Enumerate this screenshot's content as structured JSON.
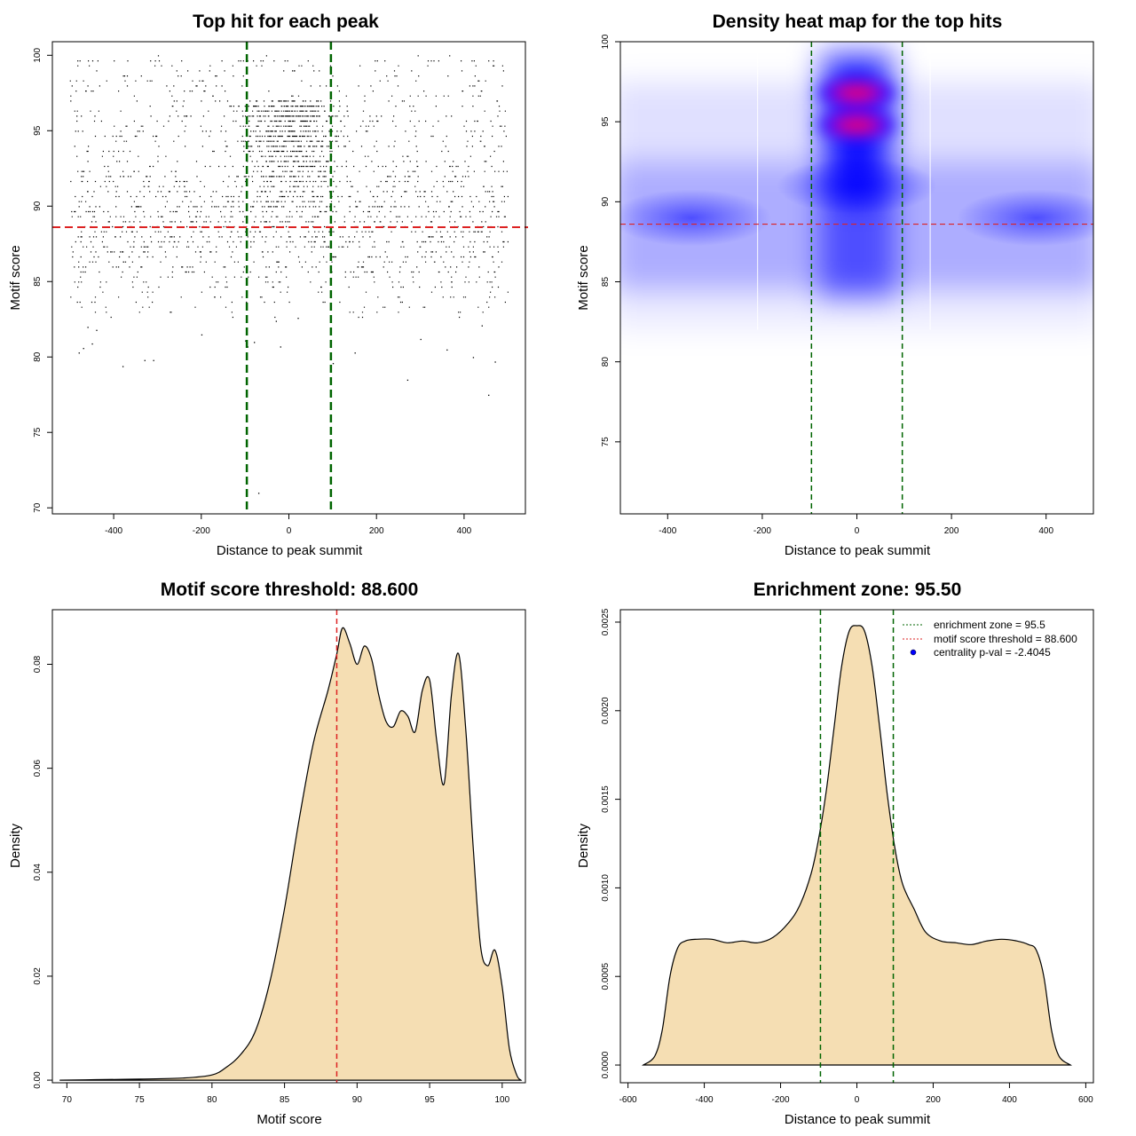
{
  "figure": {
    "colors": {
      "points": "#000000",
      "threshold_line": "#dd2222",
      "zone_line": "#006400",
      "density_fill": "#f5deb3",
      "heat_low": "#ffffff",
      "heat_mid": "#0000ff",
      "heat_high": "#ff0000",
      "legend_point": "#0000ff"
    }
  },
  "chart_data": [
    {
      "id": "scatter",
      "type": "scatter",
      "title": "Top hit for each peak",
      "xlabel": "Distance to peak summit",
      "ylabel": "Motif score",
      "xlim": [
        -540,
        540
      ],
      "ylim": [
        69.6,
        100.9
      ],
      "xticks": [
        -400,
        -200,
        0,
        200,
        400
      ],
      "yticks": [
        70,
        75,
        80,
        85,
        90,
        95,
        100
      ],
      "xtick_labels": [
        "-400",
        "-200",
        "0",
        "200",
        "400"
      ],
      "ytick_labels": [
        "70",
        "75",
        "80",
        "85",
        "90",
        "95",
        "100"
      ],
      "grid": false,
      "vlines": [
        -96,
        96
      ],
      "hline": 88.6,
      "distribution": {
        "x_range": [
          -500,
          500
        ],
        "central_x_range": [
          -96,
          96
        ],
        "score_range": [
          79,
          100
        ],
        "central_score_mode": 97,
        "outer_score_mode": 89
      },
      "points": [
        [
          -480,
          80.3
        ],
        [
          -470,
          80.6
        ],
        [
          -450,
          80.9
        ],
        [
          -380,
          79.4
        ],
        [
          -330,
          79.8
        ],
        [
          -310,
          79.8
        ],
        [
          -100,
          81.1
        ],
        [
          -80,
          81
        ],
        [
          -95,
          80.7
        ],
        [
          -70,
          71
        ],
        [
          100,
          79.6
        ],
        [
          -20,
          80.7
        ],
        [
          270,
          78.5
        ],
        [
          470,
          79.7
        ],
        [
          455,
          77.5
        ],
        [
          -460,
          82
        ],
        [
          -440,
          81.8
        ],
        [
          -200,
          81.5
        ],
        [
          -30,
          82.4
        ],
        [
          20,
          82.6
        ],
        [
          150,
          80.3
        ],
        [
          300,
          81.2
        ],
        [
          360,
          80.5
        ],
        [
          420,
          80
        ],
        [
          440,
          82.1
        ]
      ]
    },
    {
      "id": "heatmap",
      "type": "heatmap",
      "title": "Density heat map for the top hits",
      "xlabel": "Distance to peak summit",
      "ylabel": "Motif score",
      "xlim": [
        -500,
        500
      ],
      "ylim": [
        70.5,
        100
      ],
      "xticks": [
        -400,
        -200,
        0,
        200,
        400
      ],
      "yticks": [
        75,
        80,
        85,
        90,
        95,
        100
      ],
      "xtick_labels": [
        "-400",
        "-200",
        "0",
        "200",
        "400"
      ],
      "ytick_labels": [
        "75",
        "80",
        "85",
        "90",
        "95",
        "100"
      ],
      "vlines": [
        -96,
        96
      ],
      "hline": 88.6,
      "hotspots": [
        {
          "x": 0,
          "y": 96.8,
          "level": "high"
        },
        {
          "x": 0,
          "y": 94.8,
          "level": "high"
        },
        {
          "x": 0,
          "y": 91,
          "level": "mid"
        },
        {
          "x": -350,
          "y": 89,
          "level": "mid"
        },
        {
          "x": 380,
          "y": 89,
          "level": "mid"
        }
      ]
    },
    {
      "id": "score_density",
      "type": "area",
      "title": "Motif score threshold: 88.600",
      "xlabel": "Motif score",
      "ylabel": "Density",
      "xlim": [
        69,
        101.6
      ],
      "ylim": [
        -0.0005,
        0.0905
      ],
      "xticks": [
        70,
        75,
        80,
        85,
        90,
        95,
        100
      ],
      "yticks": [
        0,
        0.02,
        0.04,
        0.06,
        0.08
      ],
      "xtick_labels": [
        "70",
        "75",
        "80",
        "85",
        "90",
        "95",
        "100"
      ],
      "ytick_labels": [
        "0.00",
        "0.02",
        "0.04",
        "0.06",
        "0.08"
      ],
      "vline": 88.6,
      "x": [
        69.5,
        72,
        75,
        78,
        80,
        81,
        82,
        83,
        84,
        85,
        86,
        87,
        88,
        88.6,
        89,
        89.5,
        90,
        90.5,
        91,
        91.5,
        92,
        92.5,
        93,
        93.5,
        94,
        94.5,
        95,
        95.5,
        96,
        96.5,
        97,
        97.5,
        98,
        98.5,
        99,
        99.5,
        100,
        100.5,
        101,
        101.3
      ],
      "y": [
        0,
        0.0001,
        0.0002,
        0.0004,
        0.001,
        0.0025,
        0.005,
        0.0095,
        0.019,
        0.033,
        0.05,
        0.065,
        0.075,
        0.082,
        0.087,
        0.084,
        0.08,
        0.0835,
        0.081,
        0.074,
        0.069,
        0.068,
        0.071,
        0.07,
        0.067,
        0.075,
        0.077,
        0.065,
        0.057,
        0.074,
        0.082,
        0.067,
        0.045,
        0.026,
        0.022,
        0.025,
        0.018,
        0.006,
        0.001,
        0
      ]
    },
    {
      "id": "distance_density",
      "type": "area",
      "title": "Enrichment zone: 95.50",
      "xlabel": "Distance to peak summit",
      "ylabel": "Density",
      "xlim": [
        -620,
        620
      ],
      "ylim": [
        -0.0001,
        0.00257
      ],
      "xticks": [
        -600,
        -400,
        -200,
        0,
        200,
        400,
        600
      ],
      "yticks": [
        0,
        0.0005,
        0.001,
        0.0015,
        0.002,
        0.0025
      ],
      "xtick_labels": [
        "-600",
        "-400",
        "-200",
        "0",
        "200",
        "400",
        "600"
      ],
      "ytick_labels": [
        "0.0000",
        "0.0005",
        "0.0010",
        "0.0015",
        "0.0020",
        "0.0025"
      ],
      "vlines": [
        -95.5,
        95.5
      ],
      "legend": {
        "position": "top-right",
        "entries": [
          {
            "label": "enrichment zone = 95.5",
            "style": "dotted-green"
          },
          {
            "label": "motif score threshold = 88.600",
            "style": "dotted-red"
          },
          {
            "label": "centrality p-val = -2.4045",
            "style": "blue-point"
          }
        ]
      },
      "x": [
        -560,
        -530,
        -510,
        -490,
        -470,
        -450,
        -420,
        -380,
        -340,
        -300,
        -260,
        -220,
        -180,
        -150,
        -120,
        -100,
        -80,
        -60,
        -40,
        -20,
        0,
        20,
        40,
        60,
        80,
        100,
        120,
        150,
        180,
        220,
        260,
        300,
        340,
        380,
        420,
        450,
        470,
        490,
        510,
        530,
        560
      ],
      "y": [
        0,
        5e-05,
        0.0002,
        0.0005,
        0.00066,
        0.0007,
        0.00071,
        0.00071,
        0.00069,
        0.0007,
        0.00069,
        0.00072,
        0.0008,
        0.0009,
        0.00108,
        0.00128,
        0.00155,
        0.0019,
        0.00225,
        0.00245,
        0.00248,
        0.00245,
        0.00225,
        0.0019,
        0.00152,
        0.00122,
        0.00102,
        0.00088,
        0.00075,
        0.0007,
        0.00069,
        0.00068,
        0.0007,
        0.00071,
        0.0007,
        0.00068,
        0.00065,
        0.0005,
        0.0002,
        5e-05,
        0
      ]
    }
  ]
}
